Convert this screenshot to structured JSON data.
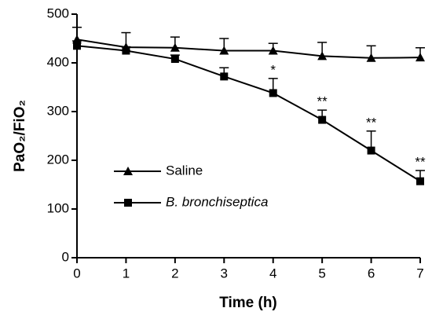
{
  "chart_data": {
    "type": "line",
    "xlabel": "Time (h)",
    "ylabel": "PaO₂/FiO₂",
    "x": [
      0,
      1,
      2,
      3,
      4,
      5,
      6,
      7
    ],
    "xlim": [
      0,
      7
    ],
    "xticks": [
      0,
      1,
      2,
      3,
      4,
      5,
      6,
      7
    ],
    "ylim": [
      0,
      500
    ],
    "yticks": [
      0,
      100,
      200,
      300,
      400,
      500
    ],
    "legend": "lower left",
    "series": [
      {
        "name": "Saline",
        "color": "#000000",
        "marker": "triangle",
        "values": [
          448,
          432,
          431,
          425,
          425,
          414,
          410,
          411
        ],
        "errors": [
          25,
          30,
          22,
          25,
          15,
          28,
          25,
          20
        ]
      },
      {
        "name": "B. bronchiseptica",
        "color": "#000000",
        "marker": "square",
        "italic": true,
        "values": [
          435,
          425,
          408,
          372,
          338,
          283,
          220,
          157
        ],
        "errors": [
          10,
          8,
          8,
          18,
          30,
          20,
          40,
          22
        ]
      }
    ],
    "annotations": [
      {
        "x": 4,
        "text": "*"
      },
      {
        "x": 5,
        "text": "**"
      },
      {
        "x": 6,
        "text": "**"
      },
      {
        "x": 7,
        "text": "**"
      }
    ]
  }
}
